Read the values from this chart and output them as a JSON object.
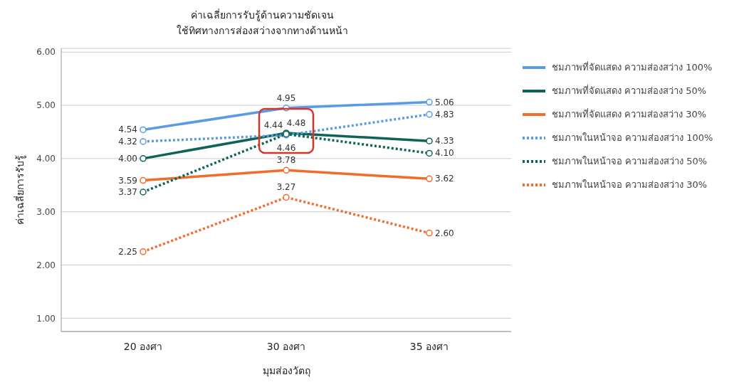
{
  "chart_data": {
    "type": "line",
    "title": "ค่าเฉลี่ยการรับรู้ด้านความชัดเจน",
    "subtitle": "ใช้ทิศทางการส่องสว่างจากทางด้านหน้า",
    "xlabel": "มุมส่องวัตถุ",
    "ylabel": "ค่าเฉลี่ยการรับรู้",
    "categories": [
      "20 องศา",
      "30 องศา",
      "35 องศา"
    ],
    "series": [
      {
        "name": "ชมภาพที่จัดแสดง ความส่องสว่าง 100%",
        "color": "#5a9be6",
        "line_style": "solid",
        "values": [
          4.54,
          4.95,
          5.06
        ],
        "value_labels": [
          "4.54",
          "4.95",
          "5.06"
        ]
      },
      {
        "name": "ชมภาพที่จัดแสดง ความส่องสว่าง 50%",
        "color": "#0e6457",
        "line_style": "solid",
        "values": [
          4.0,
          4.48,
          4.33
        ],
        "value_labels": [
          "4.00",
          "4.48",
          "4.33"
        ]
      },
      {
        "name": "ชมภาพที่จัดแสดง ความส่องสว่าง 30%",
        "color": "#f26d2d",
        "line_style": "solid",
        "values": [
          3.59,
          3.78,
          3.62
        ],
        "value_labels": [
          "3.59",
          "3.78",
          "3.62"
        ]
      },
      {
        "name": "ชมภาพในหน้าจอ ความส่องสว่าง 100%",
        "color": "#5a9be6",
        "line_style": "dotted",
        "values": [
          4.32,
          4.44,
          4.83
        ],
        "value_labels": [
          "4.32",
          "4.44",
          "4.83"
        ]
      },
      {
        "name": "ชมภาพในหน้าจอ ความส่องสว่าง 50%",
        "color": "#0e6457",
        "line_style": "dotted",
        "values": [
          3.37,
          4.46,
          4.1
        ],
        "value_labels": [
          "3.37",
          "4.46",
          "4.10"
        ]
      },
      {
        "name": "ชมภาพในหน้าจอ ความส่องสว่าง 30%",
        "color": "#f26d2d",
        "line_style": "dotted",
        "values": [
          2.25,
          3.27,
          2.6
        ],
        "value_labels": [
          "2.25",
          "3.27",
          "2.60"
        ]
      }
    ],
    "ylim": [
      0.75,
      6.07
    ],
    "yticks": [
      {
        "value": 1,
        "label": "1.00"
      },
      {
        "value": 2,
        "label": "2.00"
      },
      {
        "value": 3,
        "label": "3.00"
      },
      {
        "value": 4,
        "label": "4.00"
      },
      {
        "value": 5,
        "label": "5.00"
      },
      {
        "value": 6,
        "label": "6.00"
      }
    ],
    "grid": "y",
    "legend": "right",
    "marker": "circle"
  }
}
